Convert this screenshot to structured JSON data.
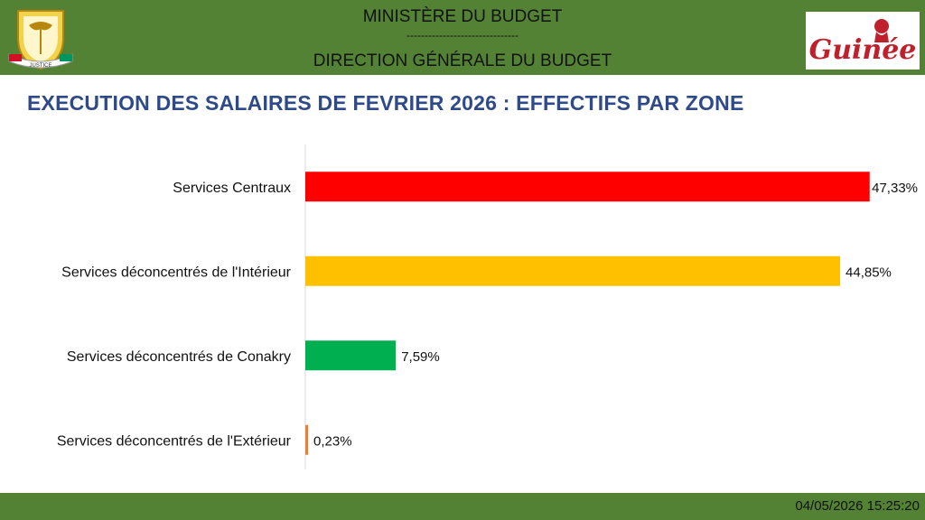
{
  "header": {
    "ministry": "MINISTÈRE DU BUDGET",
    "separator": "-------------------------------",
    "direction": "DIRECTION GÉNÉRALE DU BUDGET",
    "logo_text": "Guinée",
    "emblem_text": "JUSTICE"
  },
  "colors": {
    "header_bg": "#548235",
    "title": "#2e4a8a",
    "brand": "#c0202b"
  },
  "chart_data": {
    "type": "bar",
    "orientation": "horizontal",
    "title": "EXECUTION DES SALAIRES DE FEVRIER 2026 : EFFECTIFS PAR ZONE",
    "categories": [
      "Services Centraux",
      "Services déconcentrés de l'Intérieur",
      "Services déconcentrés de Conakry",
      "Services déconcentrés de l'Extérieur"
    ],
    "values": [
      47.33,
      44.85,
      7.59,
      0.23
    ],
    "labels": [
      "47,33%",
      "44,85%",
      "7,59%",
      "0,23%"
    ],
    "colors": [
      "#ff0000",
      "#ffc000",
      "#00b050",
      "#ed7d31"
    ],
    "xlim": [
      0,
      50
    ],
    "grid": false
  },
  "footer": {
    "timestamp": "04/05/2026 15:25:20"
  }
}
